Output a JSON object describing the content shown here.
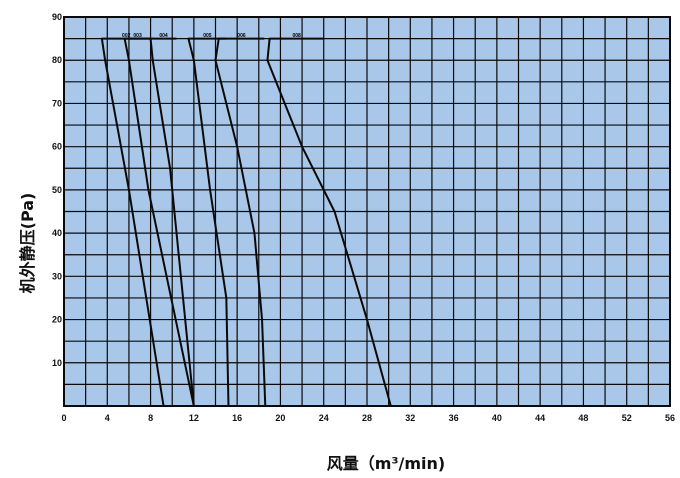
{
  "chart_data": {
    "type": "line",
    "xlabel": "风量（m³/min)",
    "ylabel": "机外静压(Pa)",
    "xlim": [
      0,
      56
    ],
    "ylim": [
      0,
      90
    ],
    "x_ticks": [
      "0",
      "4",
      "8",
      "12",
      "16",
      "20",
      "24",
      "28",
      "32",
      "36",
      "40",
      "44",
      "48",
      "52",
      "56"
    ],
    "y_ticks": [
      "10",
      "20",
      "30",
      "40",
      "50",
      "60",
      "70",
      "80",
      "90"
    ],
    "grid": true,
    "series": [
      {
        "name": "002",
        "label_x": [
          3.5,
          8.0
        ],
        "points": [
          [
            3.8,
            80
          ],
          [
            6.0,
            50
          ],
          [
            9.2,
            0
          ]
        ]
      },
      {
        "name": "003",
        "label_x": [
          5.6,
          8.0
        ],
        "points": [
          [
            6.0,
            80
          ],
          [
            7.8,
            50
          ],
          [
            12.0,
            0
          ]
        ]
      },
      {
        "name": "004",
        "label_x": [
          8.0,
          10.4
        ],
        "points": [
          [
            8.2,
            80
          ],
          [
            9.8,
            55
          ],
          [
            12.0,
            0
          ]
        ]
      },
      {
        "name": "005",
        "label_x": [
          11.5,
          15.0
        ],
        "points": [
          [
            12.0,
            80
          ],
          [
            13.5,
            50
          ],
          [
            15.0,
            25
          ],
          [
            15.2,
            0
          ]
        ]
      },
      {
        "name": "006",
        "label_x": [
          14.3,
          18.5
        ],
        "points": [
          [
            14.0,
            80
          ],
          [
            16.0,
            60
          ],
          [
            17.6,
            40
          ],
          [
            18.3,
            20
          ],
          [
            18.6,
            0
          ]
        ]
      },
      {
        "name": "008",
        "label_x": [
          19.0,
          24.0
        ],
        "points": [
          [
            18.8,
            80
          ],
          [
            22.0,
            60
          ],
          [
            25.0,
            45
          ],
          [
            28.0,
            20
          ],
          [
            30.2,
            0
          ]
        ]
      }
    ]
  },
  "colors": {
    "plot_background": "#a9c7e8",
    "grid": "#0a0a0a",
    "curve": "#0a0a0a"
  }
}
